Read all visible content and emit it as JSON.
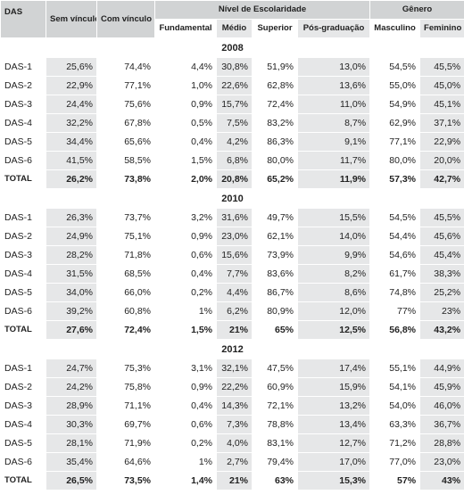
{
  "headers": {
    "das": "DAS",
    "sem": "Sem vínculo",
    "com": "Com vínculo",
    "nivel": "Nível de Escolaridade",
    "genero": "Gênero",
    "fund": "Fundamental",
    "medio": "Médio",
    "sup": "Superior",
    "pos": "Pós-graduação",
    "masc": "Masculino",
    "fem": "Feminino"
  },
  "sections": [
    {
      "year": "2008",
      "rows": [
        [
          "DAS-1",
          "25,6%",
          "74,4%",
          "4,4%",
          "30,8%",
          "51,9%",
          "13,0%",
          "54,5%",
          "45,5%"
        ],
        [
          "DAS-2",
          "22,9%",
          "77,1%",
          "1,0%",
          "22,6%",
          "62,8%",
          "13,6%",
          "55,0%",
          "45,0%"
        ],
        [
          "DAS-3",
          "24,4%",
          "75,6%",
          "0,9%",
          "15,7%",
          "72,4%",
          "11,0%",
          "54,9%",
          "45,1%"
        ],
        [
          "DAS-4",
          "32,2%",
          "67,8%",
          "0,5%",
          "7,5%",
          "83,2%",
          "8,7%",
          "62,9%",
          "37,1%"
        ],
        [
          "DAS-5",
          "34,4%",
          "65,6%",
          "0,4%",
          "4,2%",
          "86,3%",
          "9,1%",
          "77,1%",
          "22,9%"
        ],
        [
          "DAS-6",
          "41,5%",
          "58,5%",
          "1,5%",
          "6,8%",
          "80,0%",
          "11,7%",
          "80,0%",
          "20,0%"
        ]
      ],
      "total": [
        "TOTAL",
        "26,2%",
        "73,8%",
        "2,0%",
        "20,8%",
        "65,2%",
        "11,9%",
        "57,3%",
        "42,7%"
      ]
    },
    {
      "year": "2010",
      "rows": [
        [
          "DAS-1",
          "26,3%",
          "73,7%",
          "3,2%",
          "31,6%",
          "49,7%",
          "15,5%",
          "54,5%",
          "45,5%"
        ],
        [
          "DAS-2",
          "24,9%",
          "75,1%",
          "0,9%",
          "23,0%",
          "62,1%",
          "14,0%",
          "54,4%",
          "45,6%"
        ],
        [
          "DAS-3",
          "28,2%",
          "71,8%",
          "0,6%",
          "15,6%",
          "73,9%",
          "9,9%",
          "54,6%",
          "45,4%"
        ],
        [
          "DAS-4",
          "31,5%",
          "68,5%",
          "0,4%",
          "7,7%",
          "83,6%",
          "8,2%",
          "61,7%",
          "38,3%"
        ],
        [
          "DAS-5",
          "34,0%",
          "66,0%",
          "0,2%",
          "4,4%",
          "86,7%",
          "8,6%",
          "74,8%",
          "25,2%"
        ],
        [
          "DAS-6",
          "39,2%",
          "60,8%",
          "1%",
          "6,2%",
          "80,9%",
          "12,0%",
          "77%",
          "23%"
        ]
      ],
      "total": [
        "TOTAL",
        "27,6%",
        "72,4%",
        "1,5%",
        "21%",
        "65%",
        "12,5%",
        "56,8%",
        "43,2%"
      ]
    },
    {
      "year": "2012",
      "rows": [
        [
          "DAS-1",
          "24,7%",
          "75,3%",
          "3,1%",
          "32,1%",
          "47,5%",
          "17,4%",
          "55,1%",
          "44,9%"
        ],
        [
          "DAS-2",
          "24,2%",
          "75,8%",
          "0,9%",
          "22,2%",
          "60,9%",
          "15,9%",
          "54,1%",
          "45,9%"
        ],
        [
          "DAS-3",
          "28,9%",
          "71,1%",
          "0,4%",
          "14,3%",
          "72,1%",
          "13,2%",
          "54,0%",
          "46,0%"
        ],
        [
          "DAS-4",
          "30,3%",
          "69,7%",
          "0,6%",
          "7,3%",
          "78,8%",
          "13,4%",
          "63,3%",
          "36,7%"
        ],
        [
          "DAS-5",
          "28,1%",
          "71,9%",
          "0,2%",
          "4,0%",
          "83,1%",
          "12,7%",
          "71,2%",
          "28,8%"
        ],
        [
          "DAS-6",
          "35,4%",
          "64,6%",
          "1%",
          "2,7%",
          "79,4%",
          "17,0%",
          "77,0%",
          "23,0%"
        ]
      ],
      "total": [
        "TOTAL",
        "26,5%",
        "73,5%",
        "1,4%",
        "21%",
        "63%",
        "15,3%",
        "57%",
        "43%"
      ]
    }
  ]
}
